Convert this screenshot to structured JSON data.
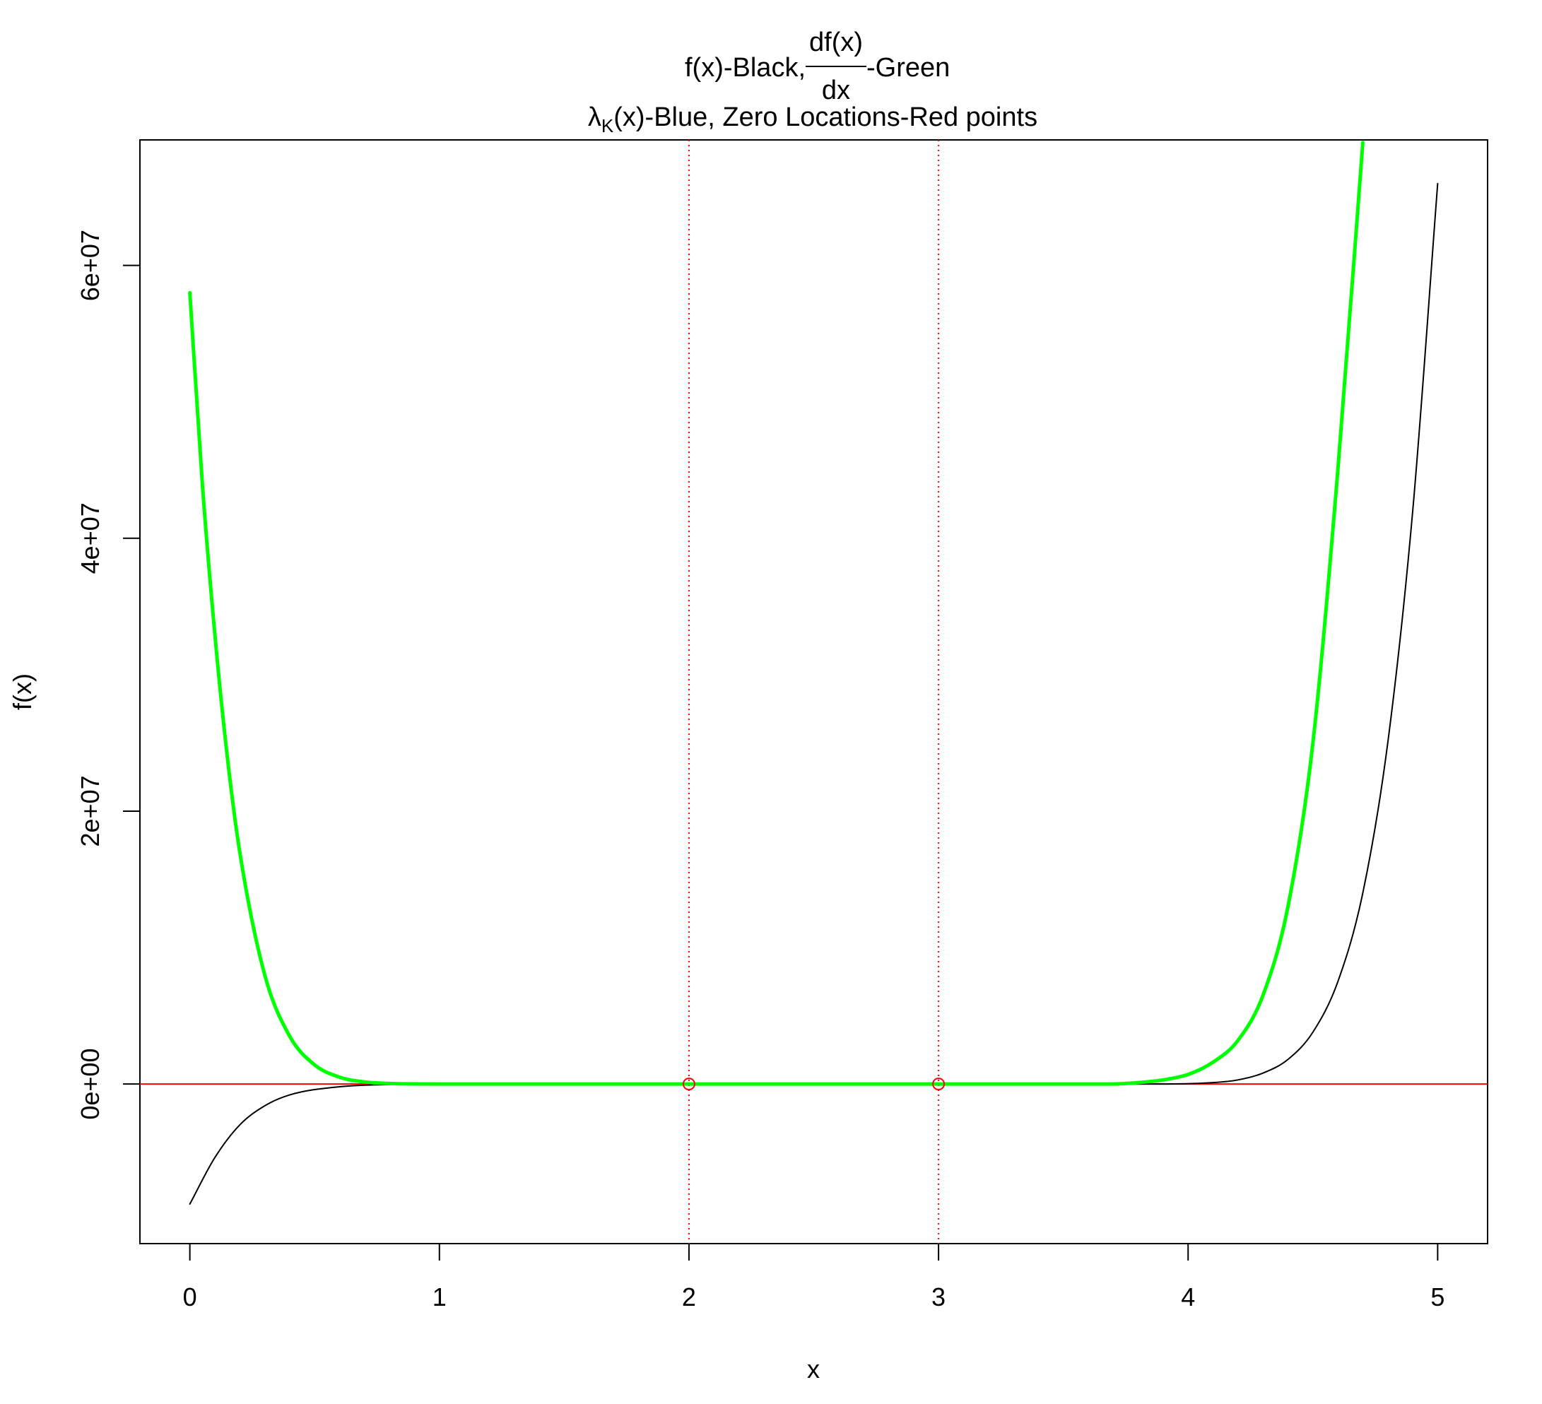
{
  "chart_data": {
    "type": "line",
    "title": {
      "line1_prefix": "f(x)-Black,",
      "fraction_numerator": "df(x)",
      "fraction_denominator": "dx",
      "line1_suffix": "-Green",
      "line2_symbol": "λ",
      "line2_subscript": "K",
      "line2_rest": "(x)-Blue, Zero Locations-Red points"
    },
    "xlabel": "x",
    "ylabel": "f(x)",
    "xlim": [
      -0.2,
      5.2
    ],
    "ylim": [
      -11700000,
      69200000
    ],
    "x_ticks": [
      0,
      1,
      2,
      3,
      4,
      5
    ],
    "x_tick_labels": [
      "0",
      "1",
      "2",
      "3",
      "4",
      "5"
    ],
    "y_ticks": [
      0,
      20000000,
      40000000,
      60000000
    ],
    "y_tick_labels": [
      "0e+00",
      "2e+07",
      "4e+07",
      "6e+07"
    ],
    "grid": false,
    "series": [
      {
        "color": "#000000",
        "points": [
          [
            0,
            -8800000
          ],
          [
            0.1,
            -5400000
          ],
          [
            0.2,
            -3000000
          ],
          [
            0.3,
            -1600000
          ],
          [
            0.4,
            -800000
          ],
          [
            0.6,
            -200000
          ],
          [
            0.8,
            -40000
          ],
          [
            1.0,
            0
          ],
          [
            3.9,
            0
          ],
          [
            4.1,
            100000
          ],
          [
            4.2,
            300000
          ],
          [
            4.3,
            800000
          ],
          [
            4.4,
            1800000
          ],
          [
            4.5,
            3800000
          ],
          [
            4.6,
            7500000
          ],
          [
            4.7,
            14000000
          ],
          [
            4.8,
            25000000
          ],
          [
            4.9,
            42000000
          ],
          [
            5.0,
            66000000
          ]
        ]
      },
      {
        "color": "#00ff00",
        "points": [
          [
            0,
            58000000
          ],
          [
            0.05,
            44000000
          ],
          [
            0.1,
            33000000
          ],
          [
            0.15,
            24000000
          ],
          [
            0.2,
            17000000
          ],
          [
            0.3,
            8000000
          ],
          [
            0.4,
            3500000
          ],
          [
            0.5,
            1400000
          ],
          [
            0.6,
            500000
          ],
          [
            0.7,
            150000
          ],
          [
            0.8,
            40000
          ],
          [
            0.9,
            8000
          ],
          [
            1.0,
            0
          ],
          [
            3.7,
            0
          ],
          [
            3.8,
            100000
          ],
          [
            3.9,
            300000
          ],
          [
            4.0,
            700000
          ],
          [
            4.1,
            1600000
          ],
          [
            4.2,
            3200000
          ],
          [
            4.3,
            6500000
          ],
          [
            4.4,
            13000000
          ],
          [
            4.5,
            25000000
          ],
          [
            4.6,
            45000000
          ],
          [
            4.7,
            69000000
          ]
        ]
      }
    ],
    "zero_line": {
      "y": 0,
      "color": "#ff0000"
    },
    "zero_locations": [
      2,
      3
    ],
    "zero_marker_color": "#ff0000"
  }
}
